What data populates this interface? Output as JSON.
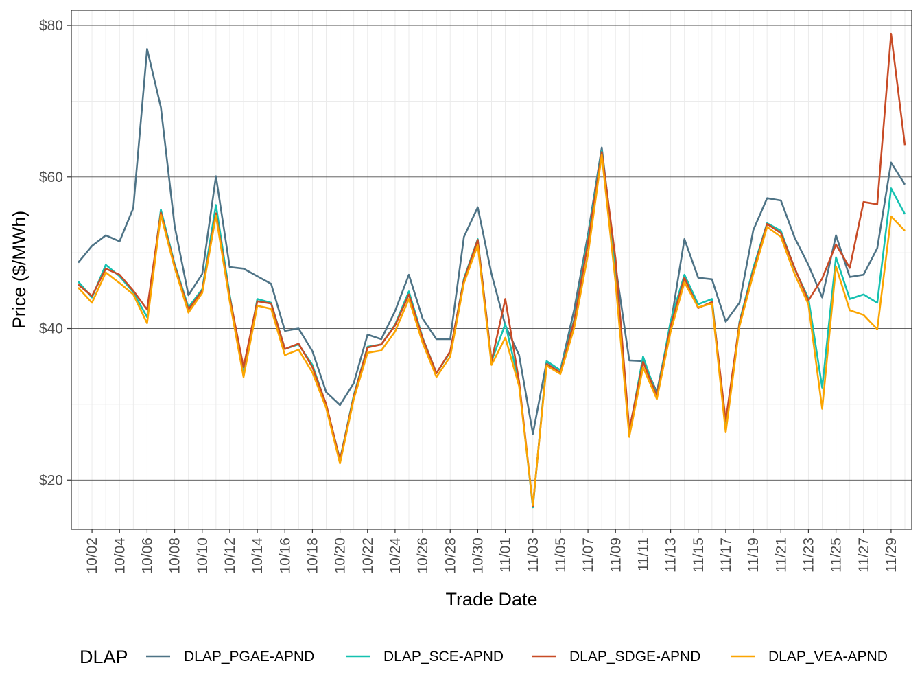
{
  "chart_data": {
    "type": "line",
    "xlabel": "Trade Date",
    "ylabel": "Price ($/MWh)",
    "ylim": [
      13.5,
      82
    ],
    "yticks": [
      20,
      40,
      60,
      80
    ],
    "ytick_labels": [
      "$20",
      "$40",
      "$60",
      "$80"
    ],
    "x_range": [
      "10/01",
      "11/30"
    ],
    "x": [
      "10/01",
      "10/02",
      "10/03",
      "10/04",
      "10/05",
      "10/06",
      "10/07",
      "10/08",
      "10/09",
      "10/10",
      "10/11",
      "10/12",
      "10/13",
      "10/14",
      "10/15",
      "10/16",
      "10/17",
      "10/18",
      "10/19",
      "10/20",
      "10/21",
      "10/22",
      "10/23",
      "10/24",
      "10/25",
      "10/26",
      "10/27",
      "10/28",
      "10/29",
      "10/30",
      "10/31",
      "11/01",
      "11/02",
      "11/03",
      "11/04",
      "11/05",
      "11/06",
      "11/07",
      "11/08",
      "11/09",
      "11/10",
      "11/11",
      "11/12",
      "11/13",
      "11/14",
      "11/15",
      "11/16",
      "11/17",
      "11/18",
      "11/19",
      "11/20",
      "11/21",
      "11/22",
      "11/23",
      "11/24",
      "11/25",
      "11/26",
      "11/27",
      "11/28",
      "11/29",
      "11/30"
    ],
    "xtick_labels": [
      "10/02",
      "10/04",
      "10/06",
      "10/08",
      "10/10",
      "10/12",
      "10/14",
      "10/16",
      "10/18",
      "10/20",
      "10/22",
      "10/24",
      "10/26",
      "10/28",
      "10/30",
      "11/01",
      "11/03",
      "11/05",
      "11/07",
      "11/09",
      "11/11",
      "11/13",
      "11/15",
      "11/17",
      "11/19",
      "11/21",
      "11/23",
      "11/25",
      "11/27",
      "11/29"
    ],
    "grid": true,
    "legend": {
      "title": "DLAP",
      "position": "bottom"
    },
    "series": [
      {
        "name": "DLAP_PGAE-APND",
        "color": "#4e7386",
        "values": [
          48.7,
          50.9,
          52.3,
          51.5,
          55.9,
          76.9,
          69.2,
          53.5,
          44.4,
          47.2,
          60.1,
          48.1,
          47.9,
          46.9,
          45.9,
          39.7,
          40.0,
          37.0,
          31.6,
          29.9,
          32.8,
          39.2,
          38.6,
          42.3,
          47.1,
          41.3,
          38.6,
          38.6,
          52.1,
          56.0,
          47.2,
          40.4,
          36.5,
          26.1,
          35.6,
          34.5,
          42.5,
          52.4,
          63.9,
          48.3,
          35.8,
          35.7,
          31.6,
          40.5,
          51.8,
          46.7,
          46.5,
          40.9,
          43.4,
          53.0,
          57.2,
          56.9,
          52.0,
          48.4,
          44.1,
          52.3,
          46.8,
          47.1,
          50.6,
          61.9,
          59.0
        ]
      },
      {
        "name": "DLAP_SCE-APND",
        "color": "#15c1b0",
        "values": [
          46.2,
          44.1,
          48.4,
          46.9,
          44.8,
          41.5,
          55.7,
          48.5,
          42.8,
          45.2,
          56.3,
          44.4,
          34.0,
          43.9,
          43.4,
          37.3,
          37.9,
          35.2,
          29.9,
          22.7,
          31.2,
          37.6,
          37.9,
          40.5,
          44.9,
          38.8,
          34.1,
          36.9,
          46.6,
          51.8,
          35.7,
          40.6,
          32.8,
          16.4,
          35.7,
          34.5,
          41.2,
          51.8,
          63.5,
          47.5,
          26.3,
          36.3,
          31.1,
          41.0,
          47.1,
          43.2,
          43.9,
          26.9,
          40.9,
          48.0,
          53.9,
          52.9,
          47.9,
          44.0,
          32.2,
          49.4,
          43.9,
          44.5,
          43.4,
          58.5,
          55.1
        ]
      },
      {
        "name": "DLAP_SDGE-APND",
        "color": "#c84b26",
        "values": [
          45.8,
          44.3,
          47.9,
          47.1,
          45.0,
          42.5,
          55.3,
          48.3,
          42.5,
          45.0,
          55.2,
          44.1,
          34.9,
          43.6,
          43.3,
          37.3,
          38.0,
          34.9,
          30.0,
          22.6,
          31.0,
          37.5,
          37.9,
          40.4,
          44.5,
          38.7,
          34.1,
          37.0,
          46.4,
          51.7,
          35.7,
          43.9,
          33.0,
          16.6,
          35.3,
          34.2,
          41.0,
          51.3,
          63.3,
          49.2,
          26.6,
          35.6,
          31.1,
          40.3,
          46.7,
          42.7,
          43.5,
          27.8,
          40.7,
          47.6,
          53.8,
          52.6,
          48.0,
          43.7,
          46.6,
          51.1,
          48.0,
          56.7,
          56.4,
          78.9,
          64.2
        ]
      },
      {
        "name": "DLAP_VEA-APND",
        "color": "#fba502",
        "values": [
          45.4,
          43.4,
          47.4,
          46.0,
          44.5,
          40.7,
          55.0,
          48.0,
          42.1,
          44.7,
          54.9,
          43.6,
          33.6,
          43.0,
          42.6,
          36.5,
          37.2,
          34.2,
          29.5,
          22.2,
          30.7,
          36.8,
          37.1,
          39.6,
          43.9,
          38.1,
          33.6,
          36.3,
          46.0,
          51.0,
          35.2,
          38.8,
          32.4,
          16.7,
          35.1,
          34.0,
          40.1,
          49.8,
          62.9,
          46.1,
          25.7,
          34.9,
          30.7,
          39.6,
          46.1,
          42.8,
          43.3,
          26.3,
          40.3,
          47.2,
          53.4,
          52.1,
          47.2,
          43.2,
          29.4,
          48.2,
          42.4,
          41.8,
          39.9,
          54.8,
          52.9
        ]
      }
    ]
  }
}
